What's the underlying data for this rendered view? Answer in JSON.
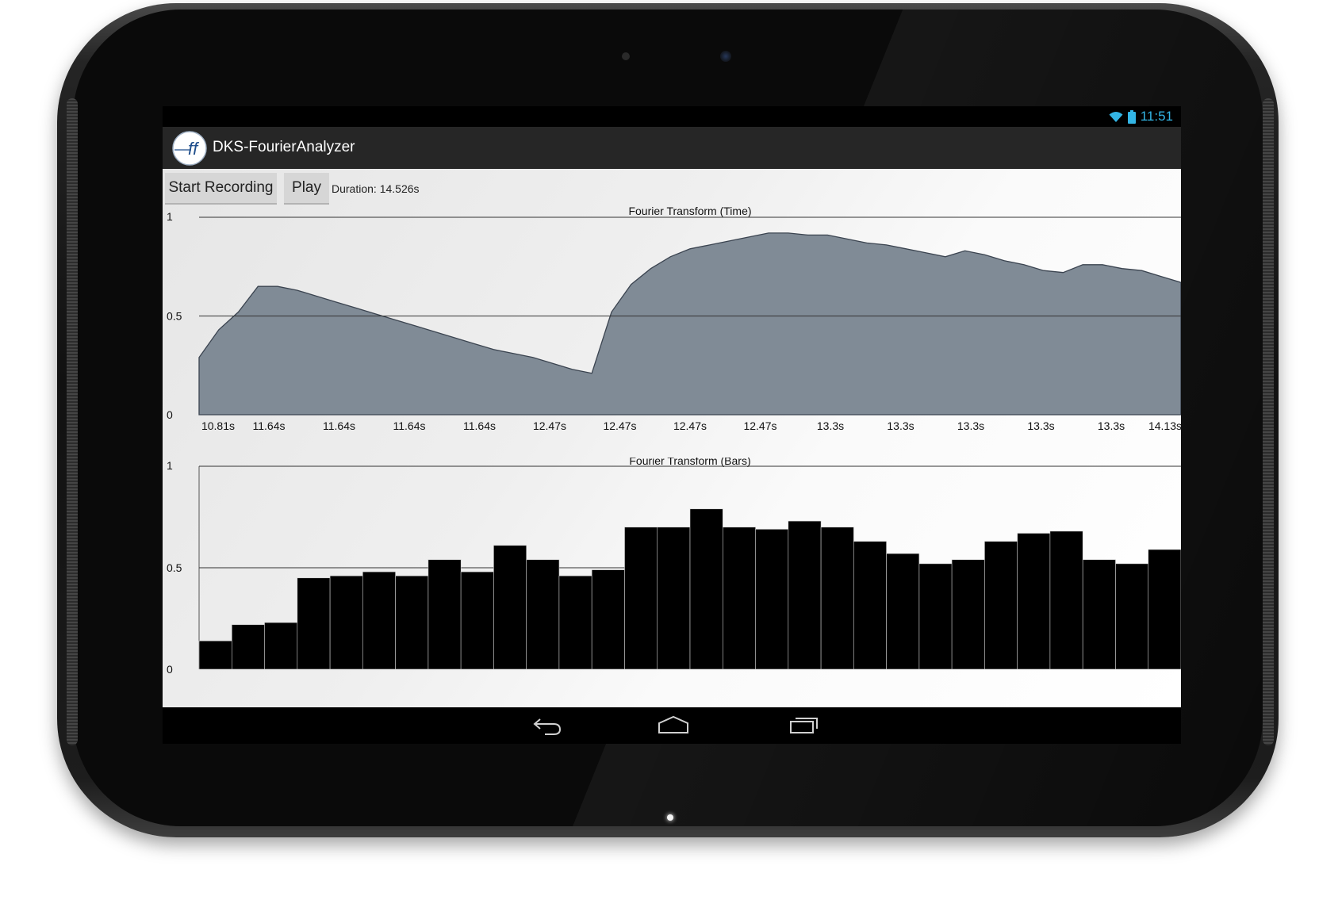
{
  "status_bar": {
    "time": "11:51",
    "icons": [
      "wifi-icon",
      "battery-icon"
    ],
    "clock_color": "#33b5e5"
  },
  "app": {
    "title": "DKS-FourierAnalyzer",
    "icon": "fft-logo-icon"
  },
  "controls": {
    "start_recording_label": "Start Recording",
    "play_label": "Play",
    "duration_text": "Duration: 14.526s"
  },
  "nav_bar": {
    "icons": [
      "back-icon",
      "home-icon",
      "recent-apps-icon"
    ]
  },
  "colors": {
    "area_fill": "#808b96",
    "bar_fill": "#000000",
    "action_bar": "#262626",
    "button": "#d6d6d6"
  },
  "chart_data": [
    {
      "type": "area",
      "title": "Fourier Transform (Time)",
      "ylim": [
        0,
        1
      ],
      "y_ticks": [
        "0",
        "0.5",
        "1"
      ],
      "grid": true,
      "x_ticks": [
        "10.81s",
        "11.64s",
        "11.64s",
        "11.64s",
        "11.64s",
        "12.47s",
        "12.47s",
        "12.47s",
        "12.47s",
        "13.3s",
        "13.3s",
        "13.3s",
        "13.3s",
        "13.3s",
        "14.13s"
      ],
      "x": [
        0,
        1,
        2,
        3,
        4,
        5,
        6,
        7,
        8,
        9,
        10,
        11,
        12,
        13,
        14,
        15,
        16,
        17,
        18,
        19,
        20,
        21,
        22,
        23,
        24,
        25,
        26,
        27,
        28,
        29,
        30,
        31,
        32,
        33,
        34,
        35,
        36,
        37,
        38,
        39,
        40,
        41,
        42,
        43,
        44,
        45,
        46,
        47,
        48,
        49,
        50
      ],
      "values": [
        0.29,
        0.43,
        0.52,
        0.65,
        0.65,
        0.63,
        0.6,
        0.57,
        0.54,
        0.51,
        0.48,
        0.45,
        0.42,
        0.39,
        0.36,
        0.33,
        0.31,
        0.29,
        0.26,
        0.23,
        0.21,
        0.52,
        0.66,
        0.74,
        0.8,
        0.84,
        0.86,
        0.88,
        0.9,
        0.92,
        0.92,
        0.91,
        0.91,
        0.89,
        0.87,
        0.86,
        0.84,
        0.82,
        0.8,
        0.83,
        0.81,
        0.78,
        0.76,
        0.73,
        0.72,
        0.76,
        0.76,
        0.74,
        0.73,
        0.7,
        0.67
      ]
    },
    {
      "type": "bar",
      "title": "Fourier Transform (Bars)",
      "ylim": [
        0,
        1
      ],
      "y_ticks": [
        "0",
        "0.5",
        "1"
      ],
      "grid": true,
      "values": [
        0.14,
        0.22,
        0.23,
        0.45,
        0.46,
        0.48,
        0.46,
        0.54,
        0.48,
        0.61,
        0.54,
        0.46,
        0.49,
        0.7,
        0.7,
        0.79,
        0.7,
        0.69,
        0.73,
        0.7,
        0.63,
        0.57,
        0.52,
        0.54,
        0.63,
        0.67,
        0.68,
        0.54,
        0.52,
        0.59
      ]
    }
  ]
}
